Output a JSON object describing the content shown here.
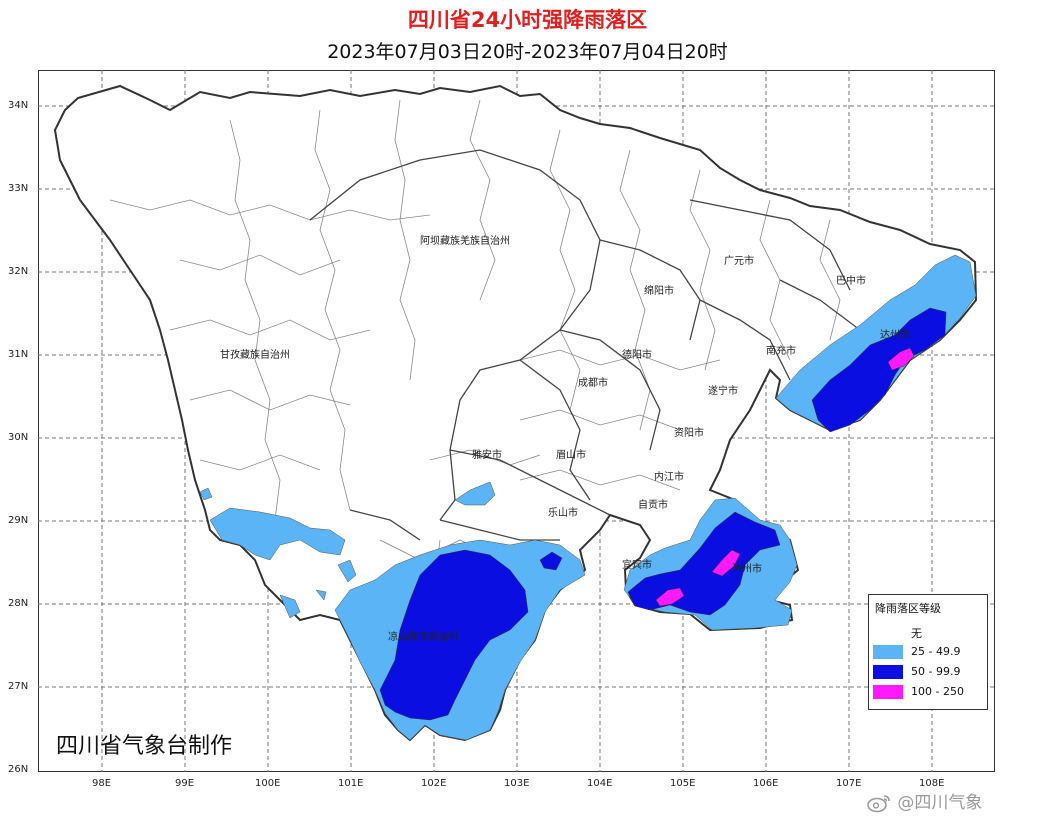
{
  "title": "四川省24小时强降雨落区",
  "subtitle": "2023年07月03日20时-2023年07月04日20时",
  "latitude_ticks": [
    "34N",
    "33N",
    "32N",
    "31N",
    "30N",
    "29N",
    "28N",
    "27N",
    "26N"
  ],
  "longitude_ticks": [
    "98E",
    "99E",
    "100E",
    "101E",
    "102E",
    "103E",
    "104E",
    "105E",
    "106E",
    "107E",
    "108E"
  ],
  "regions": [
    {
      "name": "阿坝藏族羌族自治州",
      "id": "aba"
    },
    {
      "name": "甘孜藏族自治州",
      "id": "ganzi"
    },
    {
      "name": "广元市",
      "id": "guangyuan"
    },
    {
      "name": "巴中市",
      "id": "bazhong"
    },
    {
      "name": "绵阳市",
      "id": "mianyang"
    },
    {
      "name": "达州市",
      "id": "dazhou"
    },
    {
      "name": "南充市",
      "id": "nanchong"
    },
    {
      "name": "德阳市",
      "id": "deyang"
    },
    {
      "name": "成都市",
      "id": "chengdu"
    },
    {
      "name": "遂宁市",
      "id": "suining"
    },
    {
      "name": "资阳市",
      "id": "ziyang"
    },
    {
      "name": "雅安市",
      "id": "yaan"
    },
    {
      "name": "眉山市",
      "id": "meishan"
    },
    {
      "name": "内江市",
      "id": "neijiang"
    },
    {
      "name": "自贡市",
      "id": "zigong"
    },
    {
      "name": "乐山市",
      "id": "leshan"
    },
    {
      "name": "宜宾市",
      "id": "yibin"
    },
    {
      "name": "泸州市",
      "id": "luzhou"
    },
    {
      "name": "凉山彝族自治州",
      "id": "liangshan"
    }
  ],
  "credit": "四川省气象台制作",
  "legend": {
    "title": "降雨落区等级",
    "items": [
      {
        "label": "无",
        "color": "#ffffff"
      },
      {
        "label": "25 - 49.9",
        "color": "#5ab4f5"
      },
      {
        "label": "50 - 99.9",
        "color": "#0b0ee0"
      },
      {
        "label": "100 - 250",
        "color": "#ff19ff"
      }
    ]
  },
  "watermark": "@四川气象"
}
